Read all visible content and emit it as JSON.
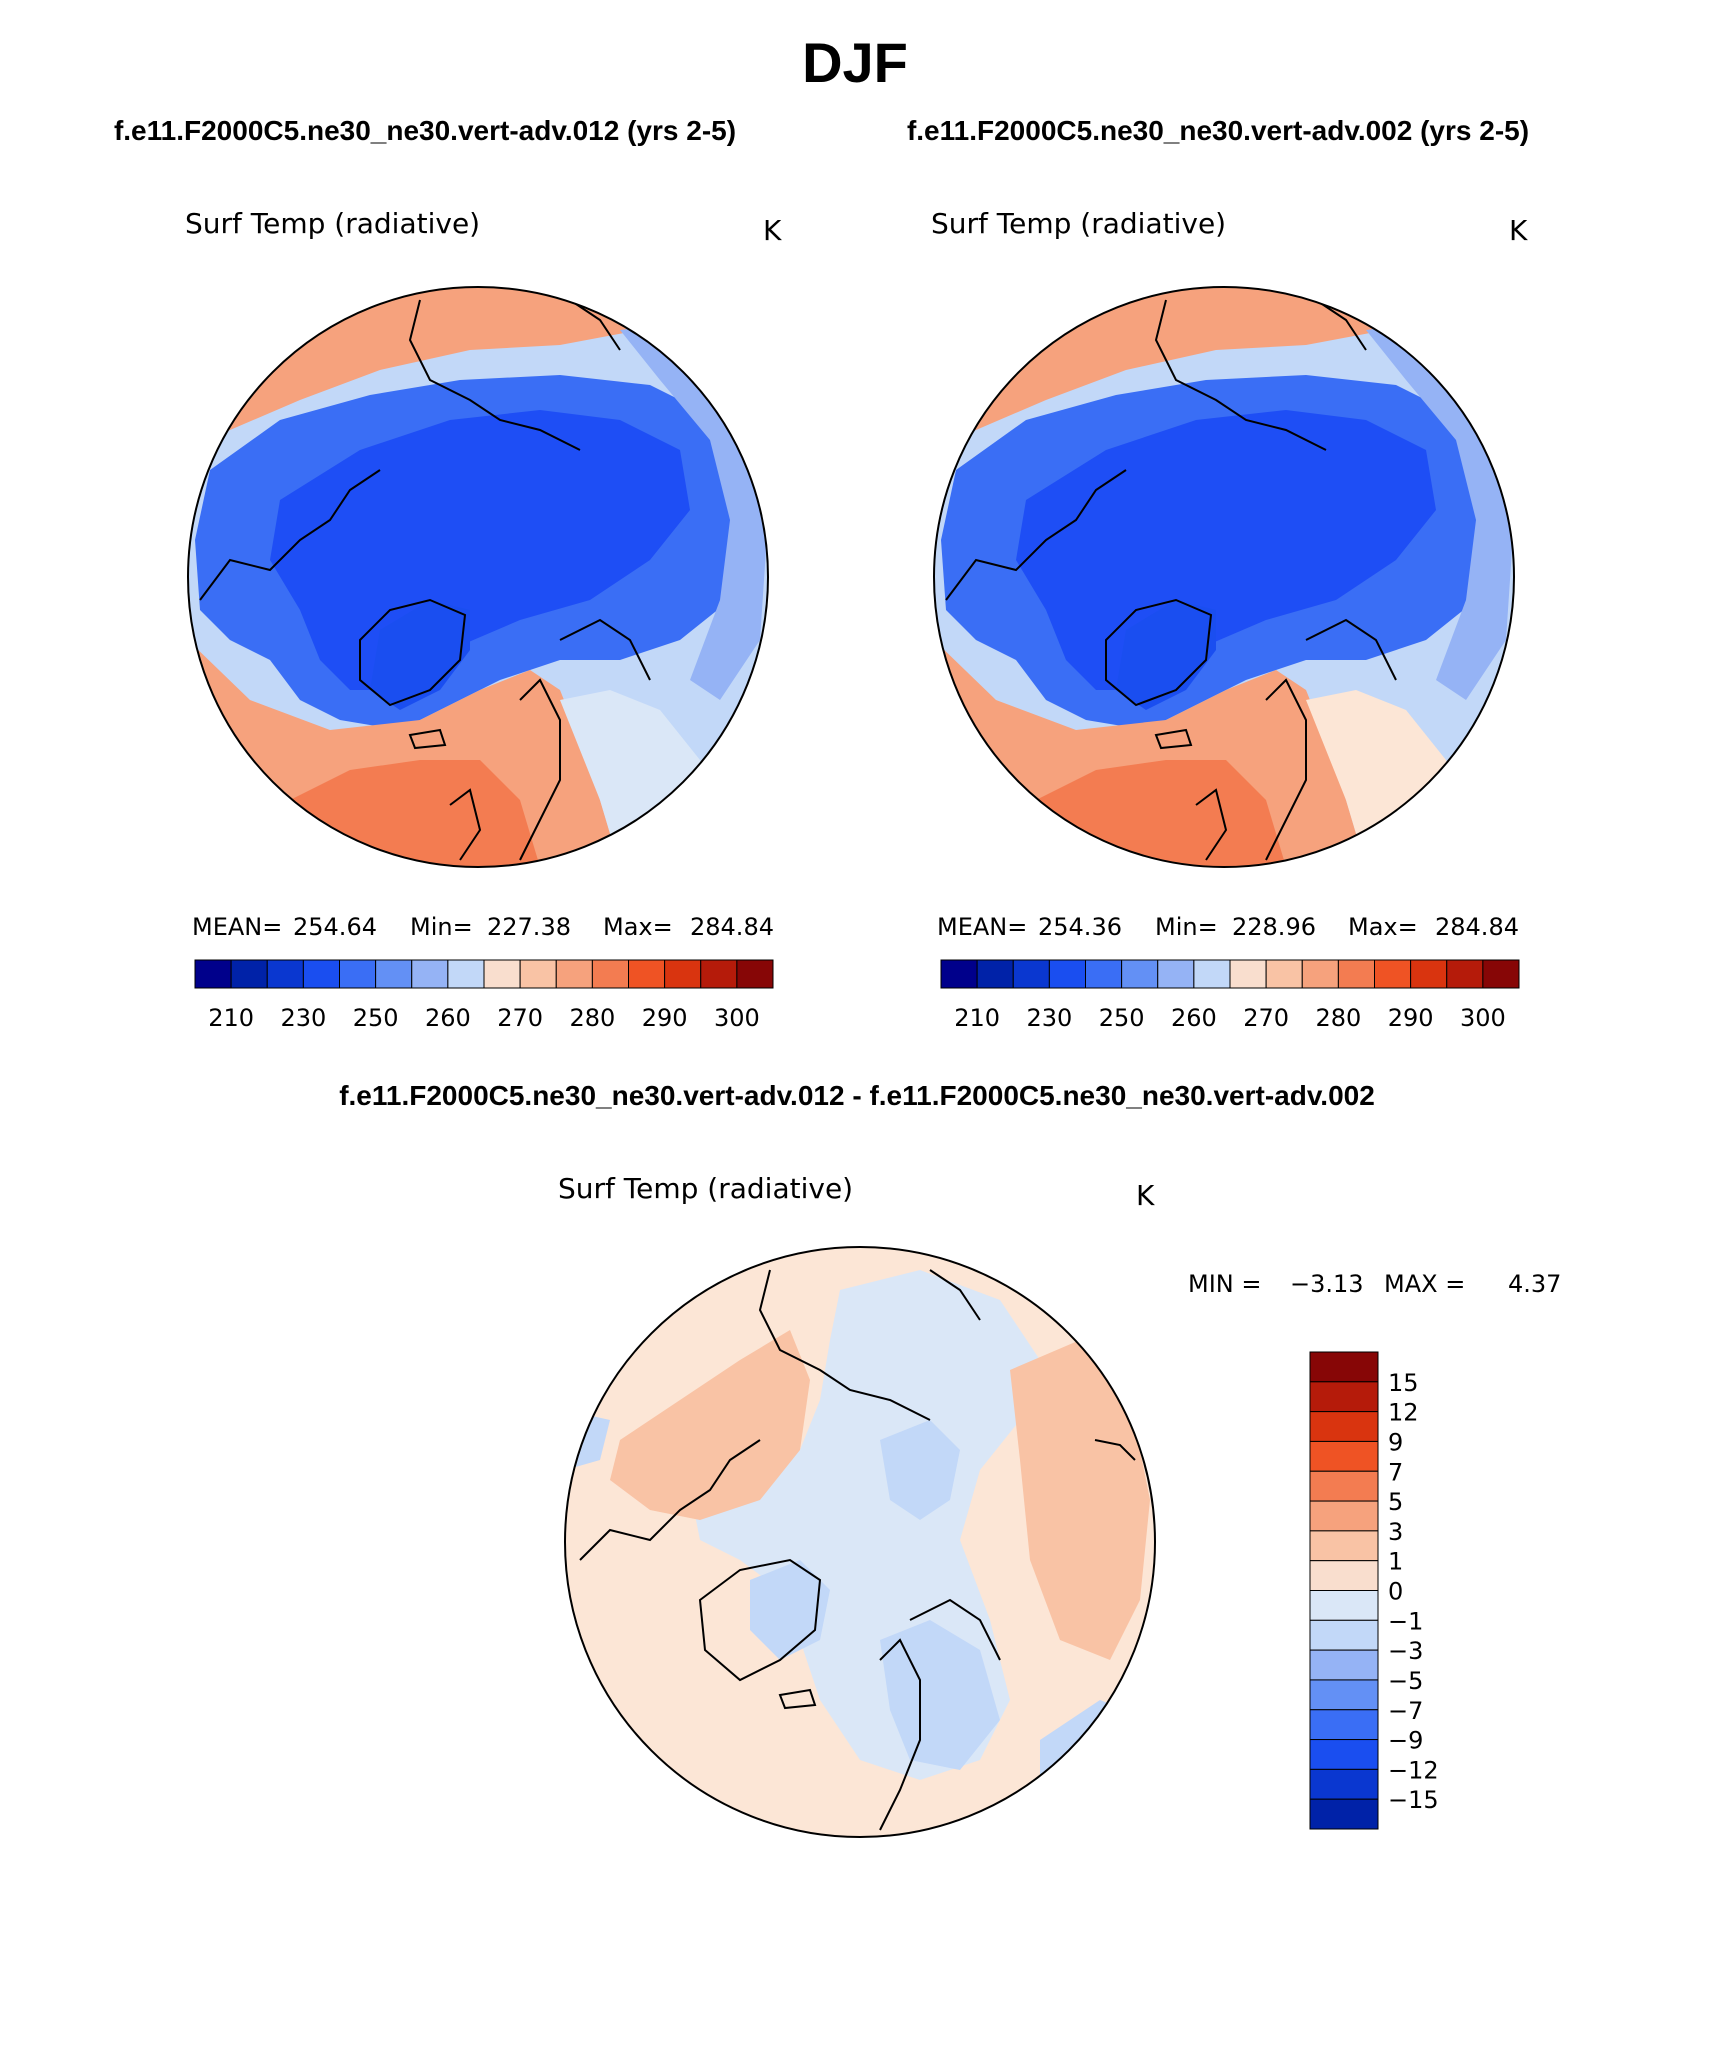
{
  "season": "DJF",
  "panels": [
    {
      "case_title": "f.e11.F2000C5.ne30_ne30.vert-adv.012 (yrs 2-5)",
      "variable": "Surf Temp (radiative)",
      "units": "K",
      "stats": {
        "mean_label": "MEAN=",
        "mean": "254.64",
        "min_label": "Min=",
        "min": "227.38",
        "max_label": "Max=",
        "max": "284.84"
      }
    },
    {
      "case_title": "f.e11.F2000C5.ne30_ne30.vert-adv.002 (yrs 2-5)",
      "variable": "Surf Temp (radiative)",
      "units": "K",
      "stats": {
        "mean_label": "MEAN=",
        "mean": "254.36",
        "min_label": "Min=",
        "min": "228.96",
        "max_label": "Max=",
        "max": "284.84"
      }
    }
  ],
  "colorbar_top": {
    "colors": [
      "#00008b",
      "#0022a8",
      "#0a37d0",
      "#1a4ef0",
      "#3a6ef5",
      "#6390f5",
      "#95b3f5",
      "#c2d8f8",
      "#f9dece",
      "#f9c3a5",
      "#f6a27d",
      "#f37c51",
      "#ef5324",
      "#d9340f",
      "#b51b0a",
      "#870606"
    ],
    "labels": [
      "210",
      "230",
      "250",
      "260",
      "270",
      "280",
      "290",
      "300"
    ]
  },
  "diff": {
    "title": "f.e11.F2000C5.ne30_ne30.vert-adv.012 - f.e11.F2000C5.ne30_ne30.vert-adv.002",
    "variable": "Surf Temp (radiative)",
    "units": "K",
    "min_label": "MIN =",
    "min": "−3.13",
    "max_label": "MAX =",
    "max": "4.37"
  },
  "colorbar_diff": {
    "colors": [
      "#870606",
      "#b51b0a",
      "#d9340f",
      "#ef5324",
      "#f37c51",
      "#f6a27d",
      "#f9c3a5",
      "#f9dece",
      "#dae7f7",
      "#c2d8f8",
      "#95b3f5",
      "#6390f5",
      "#3a6ef5",
      "#1a4ef0",
      "#0a37d0",
      "#0022a8"
    ],
    "labels": [
      "15",
      "12",
      "9",
      "7",
      "5",
      "3",
      "1",
      "0",
      "−1",
      "−3",
      "−5",
      "−7",
      "−9",
      "−12",
      "−15"
    ]
  },
  "colors": {
    "deep_blue": "#1e4ef5",
    "mid_blue": "#3a6ef5",
    "light_blue": "#95b3f5",
    "pale_blue": "#dae7f7",
    "pale_peach": "#fce6d6",
    "light_orange": "#f9c3a5",
    "orange": "#f6a27d",
    "deep_orange": "#f37c51",
    "coast": "#000000"
  }
}
